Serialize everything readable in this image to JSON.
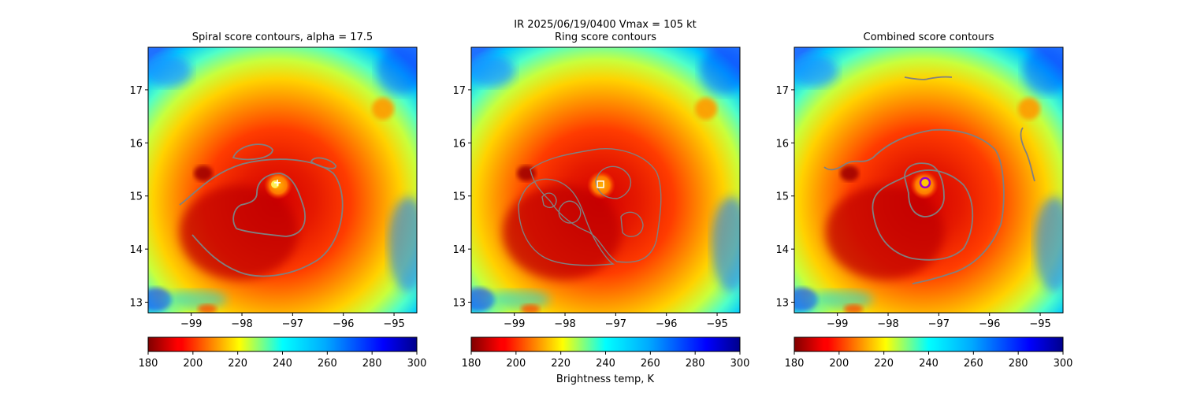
{
  "figure": {
    "suptitle": "IR  2025/06/19/0400    Vmax = 105 kt",
    "colorbar_label": "Brightness temp, K"
  },
  "colors": {
    "contour": "#808080",
    "spiral_marker": "#ffff66",
    "ring_marker": "#ffffff",
    "combined_marker_ring": "#9900cc",
    "combined_marker_fill": "#ffcc00"
  },
  "chart_data": [
    {
      "type": "heatmap",
      "title": "Spiral score contours, alpha = 17.5",
      "xlabel": "",
      "ylabel": "",
      "xlim": [
        -99.85,
        -94.55
      ],
      "ylim": [
        12.8,
        17.8
      ],
      "xticks": [
        -99,
        -98,
        -97,
        -96,
        -95
      ],
      "yticks": [
        13,
        14,
        15,
        16,
        17
      ],
      "center": {
        "lon": -97.3,
        "lat": 15.25
      },
      "marker": "plus",
      "colorbar": {
        "cmap": "jet_r",
        "range": [
          180,
          300
        ],
        "ticks": [
          180,
          200,
          220,
          240,
          260,
          280,
          300
        ]
      }
    },
    {
      "type": "heatmap",
      "title": "Ring score contours",
      "xlabel": "",
      "ylabel": "",
      "xlim": [
        -99.85,
        -94.55
      ],
      "ylim": [
        12.8,
        17.8
      ],
      "xticks": [
        -99,
        -98,
        -97,
        -96,
        -95
      ],
      "yticks": [
        13,
        14,
        15,
        16,
        17
      ],
      "center": {
        "lon": -97.3,
        "lat": 15.22
      },
      "marker": "square",
      "colorbar": {
        "cmap": "jet_r",
        "range": [
          180,
          300
        ],
        "ticks": [
          180,
          200,
          220,
          240,
          260,
          280,
          300
        ]
      }
    },
    {
      "type": "heatmap",
      "title": "Combined score contours",
      "xlabel": "",
      "ylabel": "",
      "xlim": [
        -99.85,
        -94.55
      ],
      "ylim": [
        12.8,
        17.8
      ],
      "xticks": [
        -99,
        -98,
        -97,
        -96,
        -95
      ],
      "yticks": [
        13,
        14,
        15,
        16,
        17
      ],
      "center": {
        "lon": -97.27,
        "lat": 15.25
      },
      "marker": "circle",
      "colorbar": {
        "cmap": "jet_r",
        "range": [
          180,
          300
        ],
        "ticks": [
          180,
          200,
          220,
          240,
          260,
          280,
          300
        ]
      }
    }
  ]
}
